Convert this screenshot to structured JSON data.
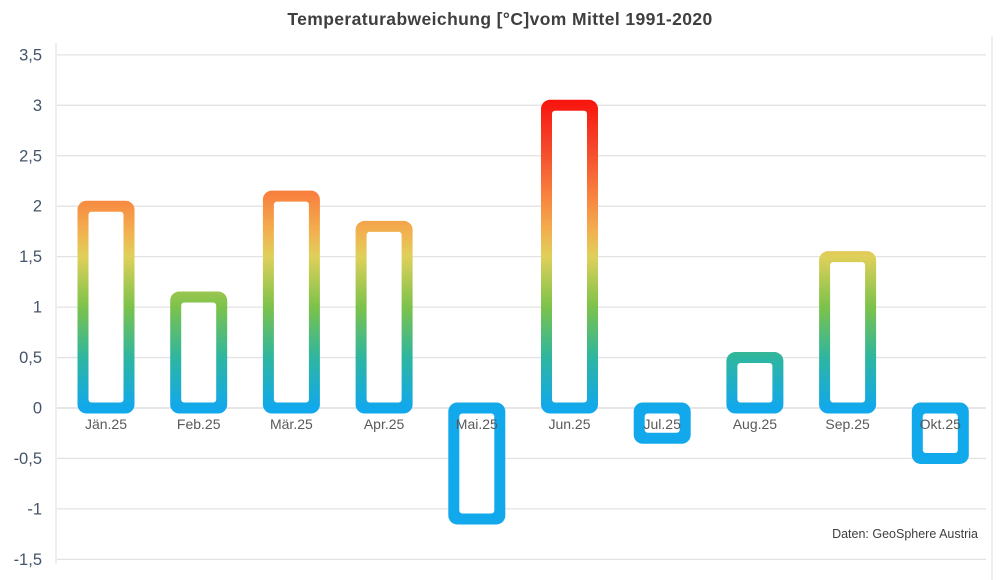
{
  "chart_data": {
    "type": "bar",
    "title": "Temperaturabweichung [°C]vom Mittel 1991-2020",
    "source": "Daten: GeoSphere Austria",
    "unit": "°C",
    "categories": [
      "Jän.25",
      "Feb.25",
      "Mär.25",
      "Apr.25",
      "Mai.25",
      "Jun.25",
      "Jul.25",
      "Aug.25",
      "Sep.25",
      "Okt.25"
    ],
    "values": [
      2.0,
      1.1,
      2.1,
      1.8,
      -1.1,
      3.0,
      -0.3,
      0.5,
      1.5,
      -0.5
    ],
    "ylim": [
      -1.5,
      3.5
    ],
    "ytick_step": 0.5,
    "ytick_labels": [
      "3,5",
      "3",
      "2,5",
      "2",
      "1,5",
      "1",
      "0,5",
      "0",
      "-0,5",
      "-1",
      "-1,5"
    ],
    "grid": true,
    "legend": "none",
    "bar_style": "hollow-outline-gradient",
    "colors": {
      "grid": "#E3E3E3",
      "zero_line": "#D8D8D8",
      "axis_label": "#44546A",
      "category_label": "#595959",
      "title": "#3F3F3F",
      "source": "#3F3F3F",
      "bar_fill": "#FFFFFF",
      "negative_bar": "#11A8EC"
    },
    "gradient_stops": [
      {
        "value": 3.1,
        "color": "#F80F0A"
      },
      {
        "value": 2.6,
        "color": "#F4452A"
      },
      {
        "value": 2.1,
        "color": "#F8833F"
      },
      {
        "value": 1.75,
        "color": "#F2B04F"
      },
      {
        "value": 1.5,
        "color": "#DFD05A"
      },
      {
        "value": 1.0,
        "color": "#7CC24B"
      },
      {
        "value": 0.5,
        "color": "#2EB6A0"
      },
      {
        "value": 0.0,
        "color": "#11A8EC"
      }
    ]
  }
}
